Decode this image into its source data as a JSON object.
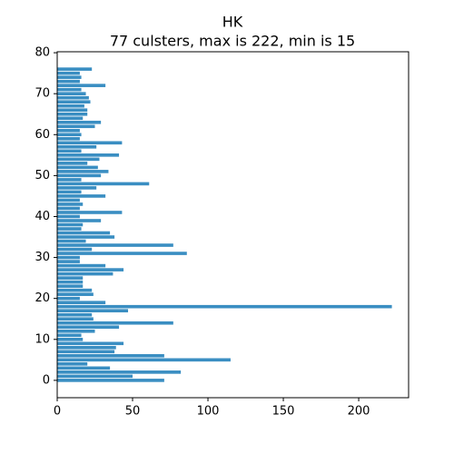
{
  "chart_data": {
    "type": "barh",
    "title": "HK",
    "subtitle": "77 culsters, max is 222, min is 15",
    "y": [
      0,
      1,
      2,
      3,
      4,
      5,
      6,
      7,
      8,
      9,
      10,
      11,
      12,
      13,
      14,
      15,
      16,
      17,
      18,
      19,
      20,
      21,
      22,
      23,
      24,
      25,
      26,
      27,
      28,
      29,
      30,
      31,
      32,
      33,
      34,
      35,
      36,
      37,
      38,
      39,
      40,
      41,
      42,
      43,
      44,
      45,
      46,
      47,
      48,
      49,
      50,
      51,
      52,
      53,
      54,
      55,
      56,
      57,
      58,
      59,
      60,
      61,
      62,
      63,
      64,
      65,
      66,
      67,
      68,
      69,
      70,
      71,
      72,
      73,
      74,
      75,
      76
    ],
    "values": [
      71,
      50,
      82,
      35,
      20,
      115,
      71,
      38,
      39,
      44,
      17,
      16,
      25,
      41,
      77,
      24,
      23,
      47,
      222,
      32,
      15,
      24,
      23,
      17,
      17,
      17,
      37,
      44,
      32,
      15,
      15,
      86,
      23,
      77,
      19,
      38,
      35,
      16,
      17,
      29,
      15,
      43,
      15,
      17,
      15,
      32,
      16,
      26,
      61,
      16,
      29,
      34,
      27,
      20,
      28,
      41,
      16,
      26,
      43,
      15,
      16,
      15,
      25,
      29,
      17,
      20,
      20,
      18,
      22,
      21,
      19,
      16,
      32,
      15,
      16,
      15,
      23
    ],
    "color": "#3a8ec2",
    "xlim": [
      0,
      233.1
    ],
    "xticks": [
      0,
      50,
      100,
      150,
      200
    ],
    "ylim": [
      -4.24,
      80.24
    ],
    "yticks": [
      0,
      10,
      20,
      30,
      40,
      50,
      60,
      70,
      80
    ]
  }
}
